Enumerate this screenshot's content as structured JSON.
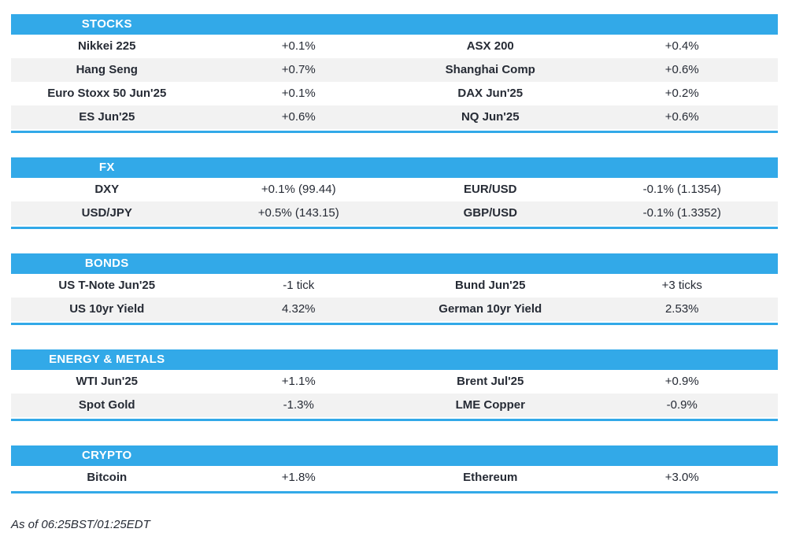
{
  "colors": {
    "accent_blue": "#32a9e8",
    "stripe_gray": "#f2f2f2",
    "text_dark": "#262b35",
    "header_text": "#ffffff"
  },
  "sections": [
    {
      "title": "STOCKS",
      "rows": [
        [
          "Nikkei 225",
          "+0.1%",
          "ASX 200",
          "+0.4%"
        ],
        [
          "Hang Seng",
          "+0.7%",
          "Shanghai Comp",
          "+0.6%"
        ],
        [
          "Euro Stoxx 50 Jun'25",
          "+0.1%",
          "DAX Jun'25",
          "+0.2%"
        ],
        [
          "ES Jun'25",
          "+0.6%",
          "NQ Jun'25",
          "+0.6%"
        ]
      ]
    },
    {
      "title": "FX",
      "rows": [
        [
          "DXY",
          "+0.1% (99.44)",
          "EUR/USD",
          "-0.1% (1.1354)"
        ],
        [
          "USD/JPY",
          "+0.5% (143.15)",
          "GBP/USD",
          "-0.1% (1.3352)"
        ]
      ]
    },
    {
      "title": "BONDS",
      "rows": [
        [
          "US T-Note Jun'25",
          "-1 tick",
          "Bund Jun'25",
          "+3 ticks"
        ],
        [
          "US 10yr Yield",
          "4.32%",
          "German 10yr Yield",
          "2.53%"
        ]
      ]
    },
    {
      "title": "ENERGY & METALS",
      "rows": [
        [
          "WTI Jun'25",
          "+1.1%",
          "Brent Jul'25",
          "+0.9%"
        ],
        [
          "Spot Gold",
          "-1.3%",
          "LME Copper",
          "-0.9%"
        ]
      ]
    },
    {
      "title": "CRYPTO",
      "rows": [
        [
          "Bitcoin",
          "+1.8%",
          "Ethereum",
          "+3.0%"
        ]
      ]
    }
  ],
  "footer": {
    "as_of": "As of 06:25BST/01:25EDT"
  }
}
